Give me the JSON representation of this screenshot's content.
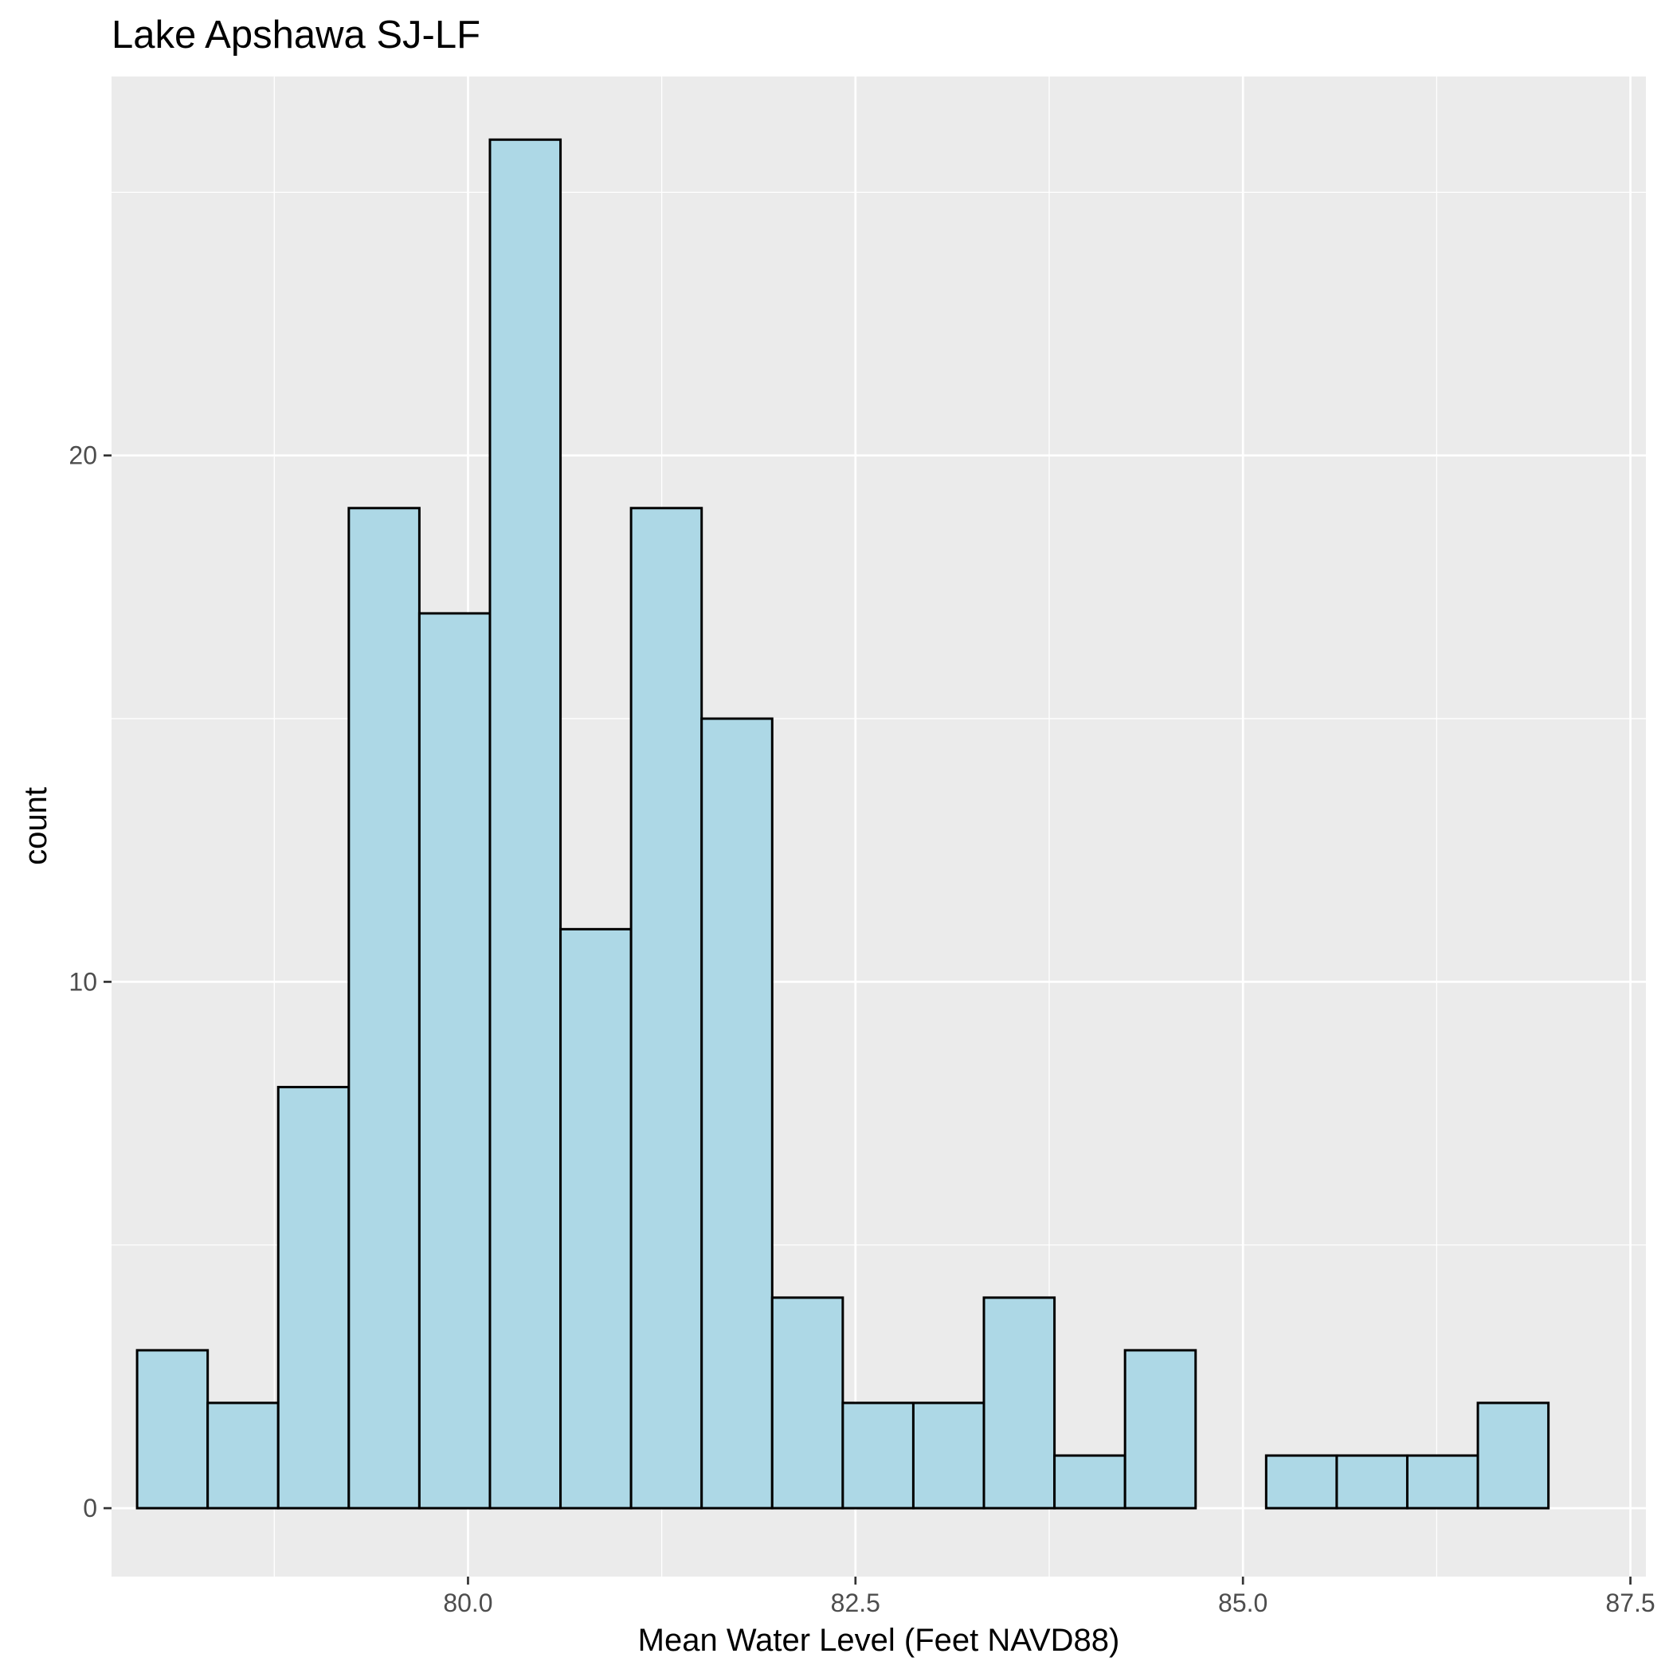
{
  "chart_data": {
    "type": "bar",
    "title": "Lake Apshawa SJ-LF",
    "xlabel": "Mean Water Level (Feet NAVD88)",
    "ylabel": "count",
    "xlim": [
      77.7,
      87.6
    ],
    "ylim": [
      -1.3,
      27.2
    ],
    "x_ticks": [
      80.0,
      82.5,
      85.0,
      87.5
    ],
    "x_tick_labels": [
      "80.0",
      "82.5",
      "85.0",
      "87.5"
    ],
    "y_ticks": [
      0,
      10,
      20
    ],
    "y_tick_labels": [
      "0",
      "10",
      "20"
    ],
    "bins": {
      "start": 77.865,
      "width": 0.4553,
      "counts": [
        3,
        2,
        8,
        19,
        17,
        26,
        11,
        19,
        15,
        4,
        2,
        2,
        4,
        1,
        3,
        0,
        1,
        1,
        1,
        2
      ]
    },
    "grid": true,
    "legend": "none",
    "colors": {
      "bar_fill": "#add8e6",
      "bar_outline": "#000000",
      "panel_background": "#ebebeb",
      "grid": "#ffffff",
      "tick_text": "#4d4d4d"
    }
  }
}
